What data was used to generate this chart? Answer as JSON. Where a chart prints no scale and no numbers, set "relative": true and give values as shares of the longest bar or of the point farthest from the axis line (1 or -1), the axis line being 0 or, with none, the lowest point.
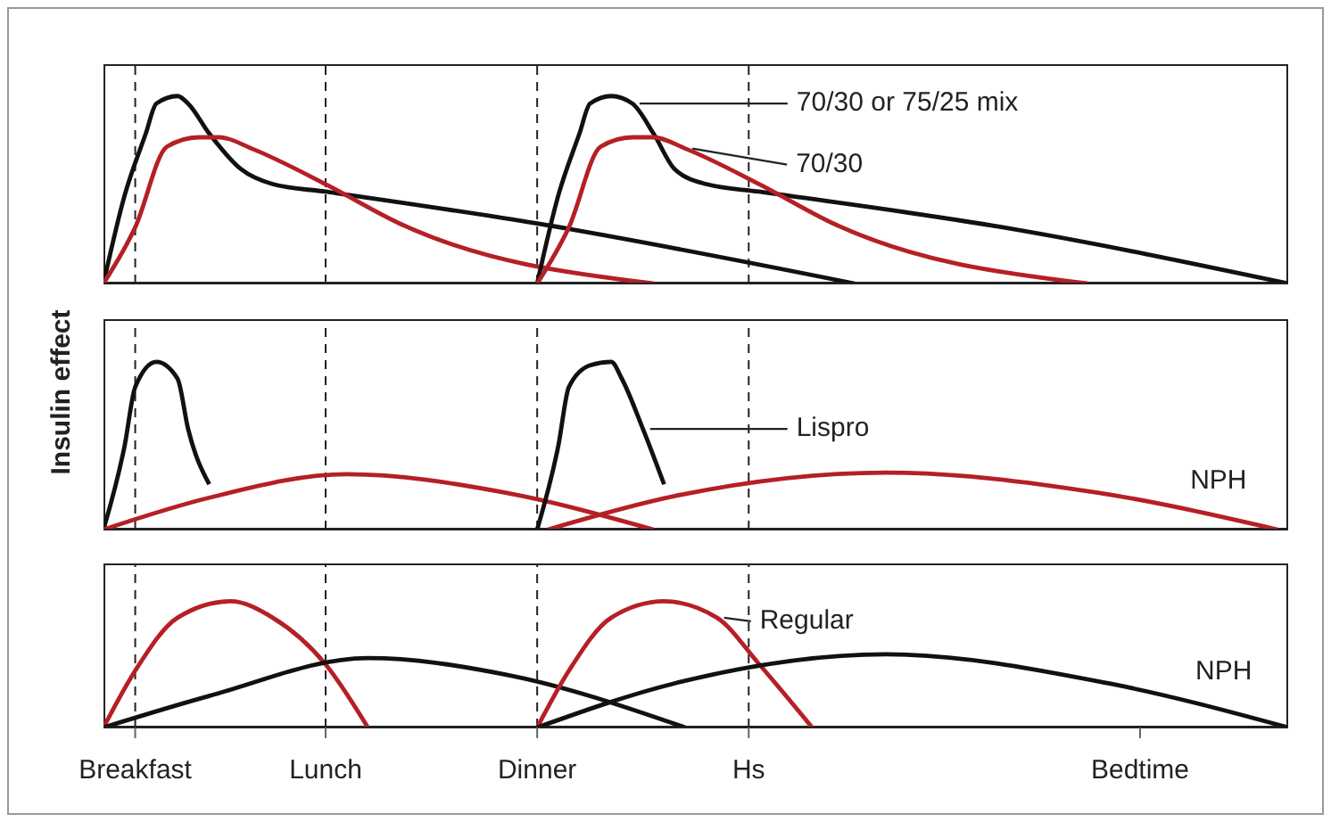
{
  "chart_data": [
    {
      "type": "line",
      "relative": true,
      "marker": "none",
      "tick_labels": false,
      "categories": [
        null,
        null,
        null,
        "Breakfast",
        null,
        null,
        null,
        null,
        null,
        null,
        null,
        null,
        null,
        null,
        null,
        null,
        null,
        null,
        null,
        null,
        null,
        "Lunch",
        null,
        null,
        null,
        null,
        null,
        null,
        null,
        null,
        null,
        null,
        null,
        null,
        null,
        null,
        null,
        null,
        null,
        null,
        null,
        "Dinner",
        null,
        null,
        null,
        null,
        null,
        null,
        null,
        null,
        null,
        null,
        null,
        null,
        null,
        null,
        null,
        null,
        null,
        null,
        null,
        "Hs",
        null,
        null,
        null,
        null,
        null,
        null,
        null,
        null,
        null,
        null,
        null,
        null,
        null,
        null,
        null,
        null,
        null,
        null,
        null,
        null,
        null,
        null,
        null,
        null,
        null,
        null,
        null,
        null,
        null,
        null,
        null,
        null,
        null,
        null,
        null,
        null,
        "Bedtime",
        null,
        null,
        null,
        null,
        null,
        null,
        null,
        null,
        null,
        null,
        null,
        null,
        null,
        null
      ],
      "ref_lines": [
        {
          "axis": "x",
          "value": "Breakfast",
          "line_style": "dashed"
        },
        {
          "axis": "x",
          "value": "Lunch",
          "line_style": "dashed"
        },
        {
          "axis": "x",
          "value": "Dinner",
          "line_style": "dashed"
        },
        {
          "axis": "x",
          "value": "Hs",
          "line_style": "dashed"
        }
      ],
      "series": [
        {
          "color": "#111111",
          "values": [
            0,
            null,
            0.47,
            null,
            0.8,
            0.96,
            null,
            1,
            0.96,
            null,
            0.8,
            null,
            null,
            0.61,
            null,
            null,
            0.53,
            null,
            null,
            null,
            null,
            0.49,
            null,
            null,
            null,
            null,
            null,
            null,
            null,
            null,
            null,
            null,
            null,
            null,
            null,
            null,
            null,
            null,
            null,
            null,
            null,
            0.32,
            null,
            null,
            null,
            null,
            null,
            null,
            null,
            null,
            null,
            null,
            null,
            null,
            null,
            null,
            null,
            null,
            null,
            null,
            null,
            null,
            null,
            null,
            null,
            null,
            null,
            null,
            null,
            null,
            null,
            0,
            null,
            null,
            null,
            null,
            null,
            null,
            null,
            null,
            null,
            null,
            null,
            null,
            null,
            null,
            null,
            null,
            null,
            null,
            null,
            null,
            null,
            null,
            null,
            null,
            null,
            null,
            null,
            null,
            null,
            null,
            null,
            null,
            null,
            null,
            null,
            null,
            null,
            null,
            null,
            null,
            null
          ]
        },
        {
          "color": "#b52025",
          "values": [
            0,
            null,
            null,
            0.3,
            null,
            null,
            0.73,
            null,
            null,
            0.78,
            null,
            0.78,
            null,
            null,
            0.72,
            null,
            null,
            null,
            null,
            null,
            null,
            0.53,
            null,
            null,
            null,
            null,
            null,
            null,
            0.32,
            null,
            null,
            null,
            null,
            null,
            null,
            null,
            null,
            null,
            null,
            null,
            null,
            null,
            null,
            null,
            null,
            null,
            null,
            null,
            null,
            null,
            null,
            null,
            0,
            null,
            null,
            null,
            null,
            null,
            null,
            null,
            null,
            null,
            null,
            null,
            null,
            null,
            null,
            null,
            null,
            null,
            null,
            null,
            null,
            null,
            null,
            null,
            null,
            null,
            null,
            null,
            null,
            null,
            null,
            null,
            null,
            null,
            null,
            null,
            null,
            null,
            null,
            null,
            null,
            null,
            null,
            null,
            null,
            null,
            null,
            null,
            null,
            null,
            null,
            null,
            null,
            null,
            null,
            null,
            null,
            null,
            null,
            null,
            null
          ]
        },
        {
          "name": "70/30 or 75/25 mix",
          "color": "#111111",
          "values": [
            null,
            null,
            null,
            null,
            null,
            null,
            null,
            null,
            null,
            null,
            null,
            null,
            null,
            null,
            null,
            null,
            null,
            null,
            null,
            null,
            null,
            null,
            null,
            null,
            null,
            null,
            null,
            null,
            null,
            null,
            null,
            null,
            null,
            null,
            null,
            null,
            null,
            null,
            null,
            null,
            null,
            0,
            null,
            0.47,
            null,
            0.8,
            0.96,
            null,
            1,
            null,
            0.96,
            null,
            0.8,
            null,
            0.61,
            null,
            null,
            0.53,
            null,
            null,
            null,
            null,
            0.49,
            null,
            null,
            null,
            null,
            null,
            null,
            null,
            null,
            null,
            null,
            null,
            null,
            null,
            null,
            null,
            null,
            null,
            null,
            null,
            null,
            null,
            null,
            0.3,
            null,
            null,
            null,
            null,
            null,
            null,
            null,
            null,
            null,
            null,
            null,
            null,
            null,
            null,
            null,
            null,
            null,
            null,
            null,
            null,
            null,
            null,
            null,
            null,
            null,
            null,
            0
          ]
        },
        {
          "name": "70/30",
          "color": "#b52025",
          "values": [
            null,
            null,
            null,
            null,
            null,
            null,
            null,
            null,
            null,
            null,
            null,
            null,
            null,
            null,
            null,
            null,
            null,
            null,
            null,
            null,
            null,
            null,
            null,
            null,
            null,
            null,
            null,
            null,
            null,
            null,
            null,
            null,
            null,
            null,
            null,
            null,
            null,
            null,
            null,
            null,
            null,
            0,
            null,
            null,
            0.3,
            null,
            null,
            0.73,
            null,
            null,
            0.78,
            null,
            0.78,
            null,
            null,
            0.72,
            null,
            null,
            null,
            null,
            null,
            null,
            0.53,
            null,
            null,
            null,
            null,
            null,
            null,
            0.32,
            null,
            null,
            null,
            null,
            null,
            null,
            null,
            null,
            null,
            null,
            null,
            null,
            null,
            null,
            null,
            null,
            null,
            null,
            null,
            null,
            null,
            null,
            null,
            0,
            null,
            null,
            null,
            null,
            null,
            null,
            null,
            null,
            null,
            null,
            null,
            null,
            null,
            null,
            null,
            null,
            null,
            null,
            null
          ]
        }
      ]
    },
    {
      "type": "line",
      "relative": true,
      "marker": "none",
      "tick_labels": false,
      "ylabel": "Insulin effect",
      "categories": [
        null,
        null,
        null,
        "Breakfast",
        null,
        null,
        null,
        null,
        null,
        null,
        null,
        null,
        null,
        null,
        null,
        null,
        null,
        null,
        null,
        null,
        null,
        "Lunch",
        null,
        null,
        null,
        null,
        null,
        null,
        null,
        null,
        null,
        null,
        null,
        null,
        null,
        null,
        null,
        null,
        null,
        null,
        null,
        "Dinner",
        null,
        null,
        null,
        null,
        null,
        null,
        null,
        null,
        null,
        null,
        null,
        null,
        null,
        null,
        null,
        null,
        null,
        null,
        null,
        "Hs",
        null,
        null,
        null,
        null,
        null,
        null,
        null,
        null,
        null,
        null,
        null,
        null,
        null,
        null,
        null,
        null,
        null,
        null,
        null,
        null,
        null,
        null,
        null,
        null,
        null,
        null,
        null,
        null,
        null,
        null,
        null,
        null,
        null,
        null,
        null,
        null,
        "Bedtime",
        null,
        null,
        null,
        null,
        null,
        null,
        null,
        null,
        null,
        null,
        null,
        null,
        null,
        null
      ],
      "ref_lines": [
        {
          "axis": "x",
          "value": "Breakfast",
          "line_style": "dashed"
        },
        {
          "axis": "x",
          "value": "Lunch",
          "line_style": "dashed"
        },
        {
          "axis": "x",
          "value": "Dinner",
          "line_style": "dashed"
        },
        {
          "axis": "x",
          "value": "Hs",
          "line_style": "dashed"
        }
      ],
      "series": [
        {
          "color": "#111111",
          "values": [
            0,
            null,
            0.5,
            0.85,
            null,
            1,
            null,
            0.9,
            0.6,
            null,
            0.27,
            null,
            null,
            null,
            null,
            null,
            null,
            null,
            null,
            null,
            null,
            null,
            null,
            null,
            null,
            null,
            null,
            null,
            null,
            null,
            null,
            null,
            null,
            null,
            null,
            null,
            null,
            null,
            null,
            null,
            null,
            null,
            null,
            null,
            null,
            null,
            null,
            null,
            null,
            null,
            null,
            null,
            null,
            null,
            null,
            null,
            null,
            null,
            null,
            null,
            null,
            null,
            null,
            null,
            null,
            null,
            null,
            null,
            null,
            null,
            null,
            null,
            null,
            null,
            null,
            null,
            null,
            null,
            null,
            null,
            null,
            null,
            null,
            null,
            null,
            null,
            null,
            null,
            null,
            null,
            null,
            null,
            null,
            null,
            null,
            null,
            null,
            null,
            null,
            null,
            null,
            null,
            null,
            null,
            null,
            null,
            null,
            null,
            null,
            null,
            null,
            null,
            null
          ]
        },
        {
          "color": "#b52025",
          "values": [
            0,
            null,
            null,
            null,
            null,
            null,
            null,
            null,
            null,
            null,
            0.19,
            null,
            null,
            null,
            null,
            null,
            null,
            null,
            null,
            null,
            null,
            null,
            null,
            0.33,
            null,
            null,
            null,
            null,
            null,
            null,
            null,
            null,
            null,
            null,
            null,
            null,
            null,
            null,
            0.22,
            null,
            null,
            null,
            null,
            null,
            null,
            null,
            null,
            null,
            null,
            null,
            null,
            null,
            0,
            null,
            null,
            null,
            null,
            null,
            null,
            null,
            null,
            null,
            null,
            null,
            null,
            null,
            null,
            null,
            null,
            null,
            null,
            null,
            null,
            null,
            null,
            null,
            null,
            null,
            null,
            null,
            null,
            null,
            null,
            null,
            null,
            null,
            null,
            null,
            null,
            null,
            null,
            null,
            null,
            null,
            null,
            null,
            null,
            null,
            null,
            null,
            null,
            null,
            null,
            null,
            null,
            null,
            null,
            null,
            null,
            null,
            null,
            null,
            null
          ]
        },
        {
          "name": "Lispro",
          "color": "#111111",
          "values": [
            null,
            null,
            null,
            null,
            null,
            null,
            null,
            null,
            null,
            null,
            null,
            null,
            null,
            null,
            null,
            null,
            null,
            null,
            null,
            null,
            null,
            null,
            null,
            null,
            null,
            null,
            null,
            null,
            null,
            null,
            null,
            null,
            null,
            null,
            null,
            null,
            null,
            null,
            null,
            null,
            null,
            0,
            null,
            0.5,
            0.85,
            null,
            0.98,
            null,
            1,
            0.9,
            null,
            0.6,
            null,
            0.27,
            null,
            null,
            null,
            null,
            null,
            null,
            null,
            null,
            null,
            null,
            null,
            null,
            null,
            null,
            null,
            null,
            null,
            null,
            null,
            null,
            null,
            null,
            null,
            null,
            null,
            null,
            null,
            null,
            null,
            null,
            null,
            null,
            null,
            null,
            null,
            null,
            null,
            null,
            null,
            null,
            null,
            null,
            null,
            null,
            null,
            null,
            null,
            null,
            null,
            null,
            null,
            null,
            null,
            null,
            null,
            null,
            null,
            null,
            null
          ]
        },
        {
          "name": "NPH",
          "color": "#b52025",
          "values": [
            null,
            null,
            null,
            null,
            null,
            null,
            null,
            null,
            null,
            null,
            null,
            null,
            null,
            null,
            null,
            null,
            null,
            null,
            null,
            null,
            null,
            null,
            null,
            null,
            null,
            null,
            null,
            null,
            null,
            null,
            null,
            null,
            null,
            null,
            null,
            null,
            null,
            null,
            null,
            null,
            null,
            null,
            0,
            null,
            null,
            null,
            null,
            null,
            null,
            null,
            null,
            null,
            null,
            null,
            0.2,
            null,
            null,
            null,
            null,
            null,
            null,
            null,
            null,
            null,
            null,
            null,
            null,
            null,
            null,
            null,
            null,
            null,
            null,
            null,
            0.34,
            null,
            null,
            null,
            null,
            null,
            null,
            null,
            null,
            null,
            null,
            null,
            null,
            null,
            null,
            null,
            null,
            null,
            null,
            null,
            0.22,
            null,
            null,
            null,
            null,
            null,
            null,
            null,
            null,
            null,
            null,
            null,
            null,
            null,
            null,
            null,
            null,
            0,
            null
          ]
        }
      ]
    },
    {
      "type": "line",
      "relative": true,
      "marker": "none",
      "categories": [
        null,
        null,
        null,
        "Breakfast",
        null,
        null,
        null,
        null,
        null,
        null,
        null,
        null,
        null,
        null,
        null,
        null,
        null,
        null,
        null,
        null,
        null,
        "Lunch",
        null,
        null,
        null,
        null,
        null,
        null,
        null,
        null,
        null,
        null,
        null,
        null,
        null,
        null,
        null,
        null,
        null,
        null,
        null,
        "Dinner",
        null,
        null,
        null,
        null,
        null,
        null,
        null,
        null,
        null,
        null,
        null,
        null,
        null,
        null,
        null,
        null,
        null,
        null,
        null,
        "Hs",
        null,
        null,
        null,
        null,
        null,
        null,
        null,
        null,
        null,
        null,
        null,
        null,
        null,
        null,
        null,
        null,
        null,
        null,
        null,
        null,
        null,
        null,
        null,
        null,
        null,
        null,
        null,
        null,
        null,
        null,
        null,
        null,
        null,
        null,
        null,
        null,
        "Bedtime",
        null,
        null,
        null,
        null,
        null,
        null,
        null,
        null,
        null,
        null,
        null,
        null,
        null,
        null
      ],
      "ref_lines": [
        {
          "axis": "x",
          "value": "Breakfast",
          "line_style": "dashed"
        },
        {
          "axis": "x",
          "value": "Lunch",
          "line_style": "dashed"
        },
        {
          "axis": "x",
          "value": "Dinner",
          "line_style": "dashed"
        },
        {
          "axis": "x",
          "value": "Hs",
          "line_style": "dashed"
        }
      ],
      "series": [
        {
          "color": "#b52025",
          "values": [
            0,
            null,
            null,
            0.45,
            null,
            null,
            null,
            0.87,
            null,
            null,
            null,
            null,
            1,
            null,
            null,
            null,
            0.87,
            null,
            null,
            null,
            null,
            0.5,
            null,
            null,
            null,
            0,
            null,
            null,
            null,
            null,
            null,
            null,
            null,
            null,
            null,
            null,
            null,
            null,
            null,
            null,
            null,
            null,
            null,
            null,
            null,
            null,
            null,
            null,
            null,
            null,
            null,
            null,
            null,
            null,
            null,
            null,
            null,
            null,
            null,
            null,
            null,
            null,
            null,
            null,
            null,
            null,
            null,
            null,
            null,
            null,
            null,
            null,
            null,
            null,
            null,
            null,
            null,
            null,
            null,
            null,
            null,
            null,
            null,
            null,
            null,
            null,
            null,
            null,
            null,
            null,
            null,
            null,
            null,
            null,
            null,
            null,
            null,
            null,
            null,
            null,
            null,
            null,
            null,
            null,
            null,
            null,
            null,
            null,
            null,
            null,
            null,
            null,
            null
          ]
        },
        {
          "color": "#111111",
          "values": [
            0,
            null,
            null,
            null,
            null,
            null,
            null,
            null,
            null,
            null,
            0.25,
            null,
            null,
            null,
            null,
            null,
            null,
            null,
            null,
            null,
            null,
            null,
            null,
            null,
            null,
            0.55,
            null,
            null,
            null,
            null,
            null,
            null,
            null,
            null,
            null,
            null,
            null,
            null,
            0.42,
            null,
            null,
            null,
            null,
            null,
            null,
            null,
            null,
            null,
            null,
            null,
            null,
            null,
            null,
            null,
            null,
            0,
            null,
            null,
            null,
            null,
            null,
            null,
            null,
            null,
            null,
            null,
            null,
            null,
            null,
            null,
            null,
            null,
            null,
            null,
            null,
            null,
            null,
            null,
            null,
            null,
            null,
            null,
            null,
            null,
            null,
            null,
            null,
            null,
            null,
            null,
            null,
            null,
            null,
            null,
            null,
            null,
            null,
            null,
            null,
            null,
            null,
            null,
            null,
            null,
            null,
            null,
            null,
            null,
            null,
            null,
            null,
            null,
            null
          ]
        },
        {
          "name": "Regular",
          "color": "#b52025",
          "values": [
            null,
            null,
            null,
            null,
            null,
            null,
            null,
            null,
            null,
            null,
            null,
            null,
            null,
            null,
            null,
            null,
            null,
            null,
            null,
            null,
            null,
            null,
            null,
            null,
            null,
            null,
            null,
            null,
            null,
            null,
            null,
            null,
            null,
            null,
            null,
            null,
            null,
            null,
            null,
            null,
            null,
            0,
            null,
            null,
            0.45,
            null,
            null,
            null,
            0.87,
            null,
            null,
            null,
            null,
            1,
            null,
            null,
            null,
            null,
            0.87,
            null,
            null,
            null,
            0.5,
            null,
            null,
            null,
            null,
            0,
            null,
            null,
            null,
            null,
            null,
            null,
            null,
            null,
            null,
            null,
            null,
            null,
            null,
            null,
            null,
            null,
            null,
            null,
            null,
            null,
            null,
            null,
            null,
            null,
            null,
            null,
            null,
            null,
            null,
            null,
            null,
            null,
            null,
            null,
            null,
            null,
            null,
            null,
            null,
            null,
            null,
            null,
            null,
            null,
            null
          ]
        },
        {
          "name": "NPH",
          "color": "#111111",
          "values": [
            null,
            null,
            null,
            null,
            null,
            null,
            null,
            null,
            null,
            null,
            null,
            null,
            null,
            null,
            null,
            null,
            null,
            null,
            null,
            null,
            null,
            null,
            null,
            null,
            null,
            null,
            null,
            null,
            null,
            null,
            null,
            null,
            null,
            null,
            null,
            null,
            null,
            null,
            null,
            null,
            null,
            0,
            null,
            null,
            null,
            null,
            null,
            null,
            null,
            null,
            null,
            null,
            null,
            null,
            0.35,
            null,
            null,
            null,
            null,
            null,
            null,
            null,
            null,
            null,
            null,
            null,
            null,
            null,
            null,
            null,
            null,
            null,
            null,
            null,
            0.58,
            null,
            null,
            null,
            null,
            null,
            null,
            null,
            null,
            null,
            null,
            null,
            null,
            null,
            null,
            null,
            null,
            null,
            null,
            null,
            null,
            0.35,
            null,
            null,
            null,
            null,
            null,
            null,
            null,
            null,
            null,
            null,
            null,
            null,
            null,
            null,
            null,
            null,
            0
          ]
        }
      ]
    }
  ]
}
